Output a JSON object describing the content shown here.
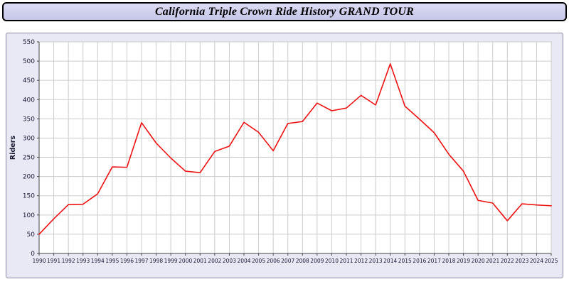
{
  "title": "California Triple Crown Ride History GRAND TOUR",
  "chart_data": {
    "type": "line",
    "title": "California Triple Crown Ride History GRAND TOUR",
    "xlabel": "",
    "ylabel": "Riders",
    "ylim": [
      0,
      550
    ],
    "ytick_step": 50,
    "grid": true,
    "legend": "none",
    "x": [
      1990,
      1991,
      1992,
      1993,
      1994,
      1995,
      1996,
      1997,
      1998,
      1999,
      2000,
      2001,
      2002,
      2003,
      2004,
      2005,
      2006,
      2007,
      2008,
      2009,
      2010,
      2011,
      2012,
      2013,
      2014,
      2015,
      2016,
      2017,
      2018,
      2019,
      2020,
      2021,
      2022,
      2023,
      2024,
      2025
    ],
    "series": [
      {
        "name": "Riders",
        "color": "#ee1111",
        "values": [
          50,
          90,
          127,
          128,
          155,
          225,
          224,
          340,
          287,
          248,
          214,
          210,
          265,
          279,
          341,
          315,
          267,
          338,
          343,
          391,
          371,
          378,
          411,
          386,
          493,
          383,
          349,
          314,
          258,
          214,
          138,
          131,
          85,
          129,
          126,
          124
        ]
      }
    ],
    "colors": {
      "plot_bg": "#ffffff",
      "panel_bg": "#e9e9f6",
      "grid": "#cccccc",
      "axis": "#444444",
      "tick_text": "#1a1a33",
      "line": "#ee1111"
    }
  }
}
